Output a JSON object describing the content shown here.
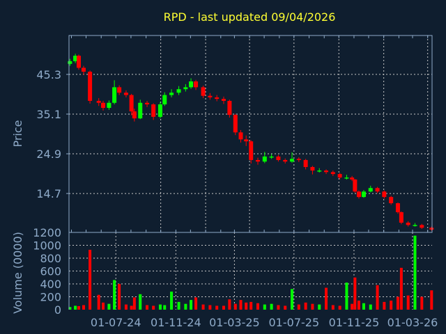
{
  "chart_data": {
    "type": "candlestick",
    "title": "RPD - last updated 09/04/2026",
    "price_panel": {
      "ylabel": "Price",
      "ylim": [
        4.7,
        55.3
      ],
      "yticks": [
        45.3,
        35.1,
        24.9,
        14.7
      ],
      "ytick_labels": [
        "45.3",
        "35.1",
        "24.9",
        "14.7"
      ],
      "grid": true,
      "grid_dates": [
        "2024-10-01",
        "2025-01-01",
        "2025-04-01",
        "2025-07-01",
        "2025-10-01",
        "2026-01-01",
        "2026-04-01"
      ]
    },
    "volume_panel": {
      "ylabel": "Volume (0000)",
      "ylim": [
        0,
        1200
      ],
      "yticks": [
        0,
        200,
        400,
        600,
        800,
        1000,
        1200
      ],
      "ytick_labels": [
        "0",
        "200",
        "400",
        "600",
        "800",
        "1000",
        "1200"
      ],
      "grid": true
    },
    "xlim": [
      "2024-03-27",
      "2026-04-10"
    ],
    "xticks": [
      "2024-07-01",
      "2024-11-01",
      "2025-03-01",
      "2025-07-01",
      "2025-11-01",
      "2026-03-01"
    ],
    "xtick_labels": [
      "01-07-24",
      "01-11-24",
      "01-03-25",
      "01-07-25",
      "01-11-25",
      "01-03-26"
    ],
    "colors": {
      "up": "#00ff00",
      "down": "#ff0000",
      "background": "#0f1e2f",
      "axis": "#8fabc9",
      "title": "#ffff33"
    },
    "dates": [
      "2024-03-29",
      "2024-04-09",
      "2024-04-16",
      "2024-04-26",
      "2024-05-09",
      "2024-05-27",
      "2024-06-05",
      "2024-06-17",
      "2024-06-28",
      "2024-07-08",
      "2024-07-22",
      "2024-08-02",
      "2024-08-08",
      "2024-08-20",
      "2024-09-03",
      "2024-09-16",
      "2024-09-30",
      "2024-10-09",
      "2024-10-23",
      "2024-11-07",
      "2024-11-21",
      "2024-12-02",
      "2024-12-12",
      "2024-12-27",
      "2025-01-10",
      "2025-01-24",
      "2025-02-07",
      "2025-02-19",
      "2025-03-03",
      "2025-03-14",
      "2025-03-25",
      "2025-04-04",
      "2025-04-18",
      "2025-05-02",
      "2025-05-16",
      "2025-05-30",
      "2025-06-13",
      "2025-06-27",
      "2025-07-11",
      "2025-07-25",
      "2025-08-08",
      "2025-08-22",
      "2025-09-05",
      "2025-09-19",
      "2025-10-03",
      "2025-10-17",
      "2025-10-28",
      "2025-11-03",
      "2025-11-11",
      "2025-11-21",
      "2025-12-05",
      "2025-12-19",
      "2026-01-02",
      "2026-01-16",
      "2026-01-30",
      "2026-02-06",
      "2026-02-20",
      "2026-03-06",
      "2026-03-20",
      "2026-04-09"
    ],
    "open": [
      48.0,
      48.7,
      50.1,
      47,
      46,
      38.5,
      38,
      36.7,
      38,
      42,
      40.6,
      40,
      35.8,
      34,
      38,
      37.6,
      34.4,
      37.6,
      40,
      40.6,
      41.5,
      42,
      43.5,
      42,
      39.8,
      39.4,
      39,
      38.5,
      34.9,
      30.4,
      28.6,
      28.1,
      23.3,
      22.9,
      24.2,
      24.2,
      23.3,
      22.9,
      23.6,
      23.3,
      21.5,
      20.6,
      20.6,
      20.2,
      19.7,
      18.8,
      18.8,
      18.3,
      15.2,
      13.8,
      15.2,
      16.1,
      15.2,
      13.8,
      12.2,
      9.9,
      7.2,
      6.6,
      6.6,
      5.9
    ],
    "high": [
      49.3,
      50.6,
      50.4,
      47.5,
      46.3,
      39.2,
      38.5,
      38.6,
      43.8,
      42.5,
      41.2,
      40.3,
      36.5,
      38.8,
      38.5,
      37.9,
      38.2,
      40.7,
      41.5,
      42.3,
      42.8,
      44.3,
      43.9,
      42.4,
      40.5,
      40,
      39.6,
      38.8,
      35.2,
      31,
      29.6,
      28.4,
      23.9,
      25.4,
      24.8,
      24.6,
      23.7,
      25.3,
      24,
      23.6,
      21.8,
      21.2,
      20.9,
      20.6,
      20,
      19.5,
      19.2,
      18.4,
      15.5,
      15.6,
      16.7,
      16.4,
      15.5,
      14.1,
      12.4,
      10.1,
      7.6,
      7.1,
      6.9,
      6.2
    ],
    "low": [
      47.5,
      48.2,
      46.5,
      45.2,
      37.8,
      37.2,
      36,
      36.2,
      37.6,
      40,
      39.4,
      34.8,
      33.2,
      33.8,
      36.9,
      33.6,
      34,
      37.2,
      39.4,
      40,
      40.9,
      41.6,
      41.3,
      39.2,
      38.8,
      38.4,
      37.7,
      34.2,
      29.7,
      27.8,
      26.9,
      22.4,
      22.1,
      22.5,
      23.6,
      22.9,
      22.4,
      22.6,
      22.8,
      20.9,
      19.6,
      20.1,
      19.7,
      19.2,
      18.3,
      18.3,
      17.9,
      14.9,
      13.4,
      13.6,
      15,
      14.8,
      13.4,
      11.8,
      9.5,
      6.8,
      6.2,
      6.2,
      5.6,
      5.1
    ],
    "close": [
      48.7,
      50.1,
      47,
      46,
      38.5,
      38,
      36.7,
      38,
      42,
      40.6,
      40,
      35.8,
      34,
      38,
      37.6,
      34.4,
      37.6,
      40,
      40.6,
      41.5,
      42,
      43.5,
      42,
      39.8,
      39.4,
      39,
      38.5,
      34.9,
      30.4,
      28.6,
      28.1,
      23.3,
      22.9,
      24.2,
      24.2,
      23.3,
      22.9,
      23.6,
      23.3,
      21.5,
      20.6,
      20.6,
      20.2,
      19.7,
      18.8,
      18.8,
      18.3,
      15.2,
      13.8,
      15.2,
      16.1,
      15.2,
      13.8,
      12.2,
      9.9,
      7.2,
      6.6,
      6.6,
      5.9,
      5.4
    ],
    "volume": [
      40,
      60,
      55,
      70,
      930,
      230,
      110,
      90,
      460,
      400,
      80,
      60,
      190,
      240,
      70,
      60,
      80,
      70,
      280,
      120,
      90,
      150,
      190,
      80,
      70,
      60,
      60,
      160,
      90,
      150,
      110,
      120,
      100,
      80,
      90,
      70,
      60,
      320,
      80,
      110,
      90,
      80,
      340,
      70,
      60,
      420,
      90,
      500,
      140,
      100,
      80,
      380,
      120,
      140,
      200,
      650,
      220,
      1150,
      200,
      300
    ]
  }
}
